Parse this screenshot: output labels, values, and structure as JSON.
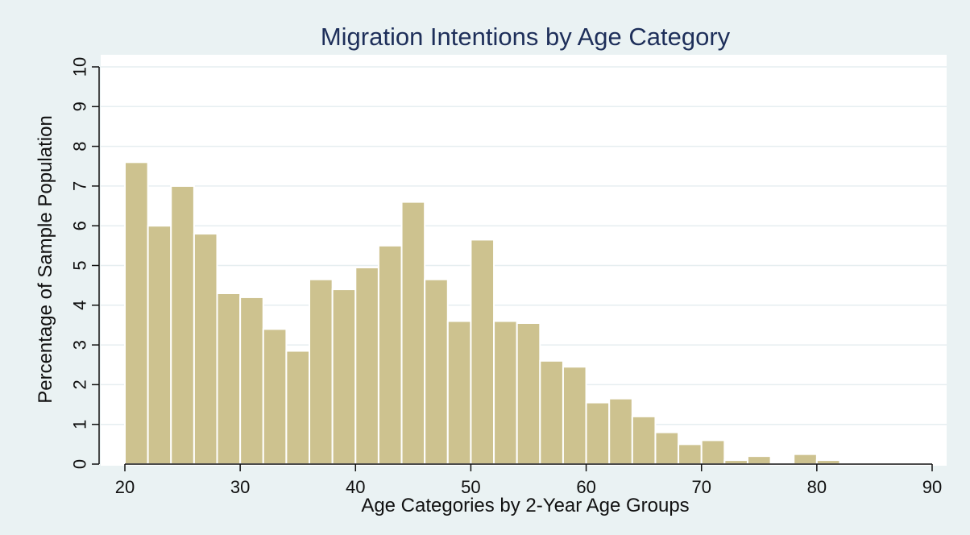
{
  "chart_data": {
    "type": "bar",
    "title": "Migration Intentions by Age Category",
    "xlabel": "Age Categories by 2-Year Age Groups",
    "ylabel": "Percentage of Sample Population",
    "xlim": [
      20,
      90
    ],
    "ylim": [
      0,
      10
    ],
    "bin_width": 2,
    "x_ticks": [
      20,
      30,
      40,
      50,
      60,
      70,
      80,
      90
    ],
    "y_ticks": [
      0,
      1,
      2,
      3,
      4,
      5,
      6,
      7,
      8,
      9,
      10
    ],
    "grid": true,
    "bar_color": "#cdc28f",
    "bar_edge_color": "#ffffff",
    "bins": [
      {
        "x_start": 20,
        "value": 7.6
      },
      {
        "x_start": 22,
        "value": 6.0
      },
      {
        "x_start": 24,
        "value": 7.0
      },
      {
        "x_start": 26,
        "value": 5.8
      },
      {
        "x_start": 28,
        "value": 4.3
      },
      {
        "x_start": 30,
        "value": 4.2
      },
      {
        "x_start": 32,
        "value": 3.4
      },
      {
        "x_start": 34,
        "value": 2.85
      },
      {
        "x_start": 36,
        "value": 4.65
      },
      {
        "x_start": 38,
        "value": 4.4
      },
      {
        "x_start": 40,
        "value": 4.95
      },
      {
        "x_start": 42,
        "value": 5.5
      },
      {
        "x_start": 44,
        "value": 6.6
      },
      {
        "x_start": 46,
        "value": 4.65
      },
      {
        "x_start": 48,
        "value": 3.6
      },
      {
        "x_start": 50,
        "value": 5.65
      },
      {
        "x_start": 52,
        "value": 3.6
      },
      {
        "x_start": 54,
        "value": 3.55
      },
      {
        "x_start": 56,
        "value": 2.6
      },
      {
        "x_start": 58,
        "value": 2.45
      },
      {
        "x_start": 60,
        "value": 1.55
      },
      {
        "x_start": 62,
        "value": 1.65
      },
      {
        "x_start": 64,
        "value": 1.2
      },
      {
        "x_start": 66,
        "value": 0.8
      },
      {
        "x_start": 68,
        "value": 0.5
      },
      {
        "x_start": 70,
        "value": 0.6
      },
      {
        "x_start": 72,
        "value": 0.1
      },
      {
        "x_start": 74,
        "value": 0.2
      },
      {
        "x_start": 76,
        "value": 0.0
      },
      {
        "x_start": 78,
        "value": 0.25
      },
      {
        "x_start": 80,
        "value": 0.1
      }
    ]
  },
  "colors": {
    "background": "#eaf2f3",
    "plot_background": "#ffffff",
    "gridline": "#e6eef0",
    "title": "#1e2f5a",
    "axis": "#111111"
  }
}
